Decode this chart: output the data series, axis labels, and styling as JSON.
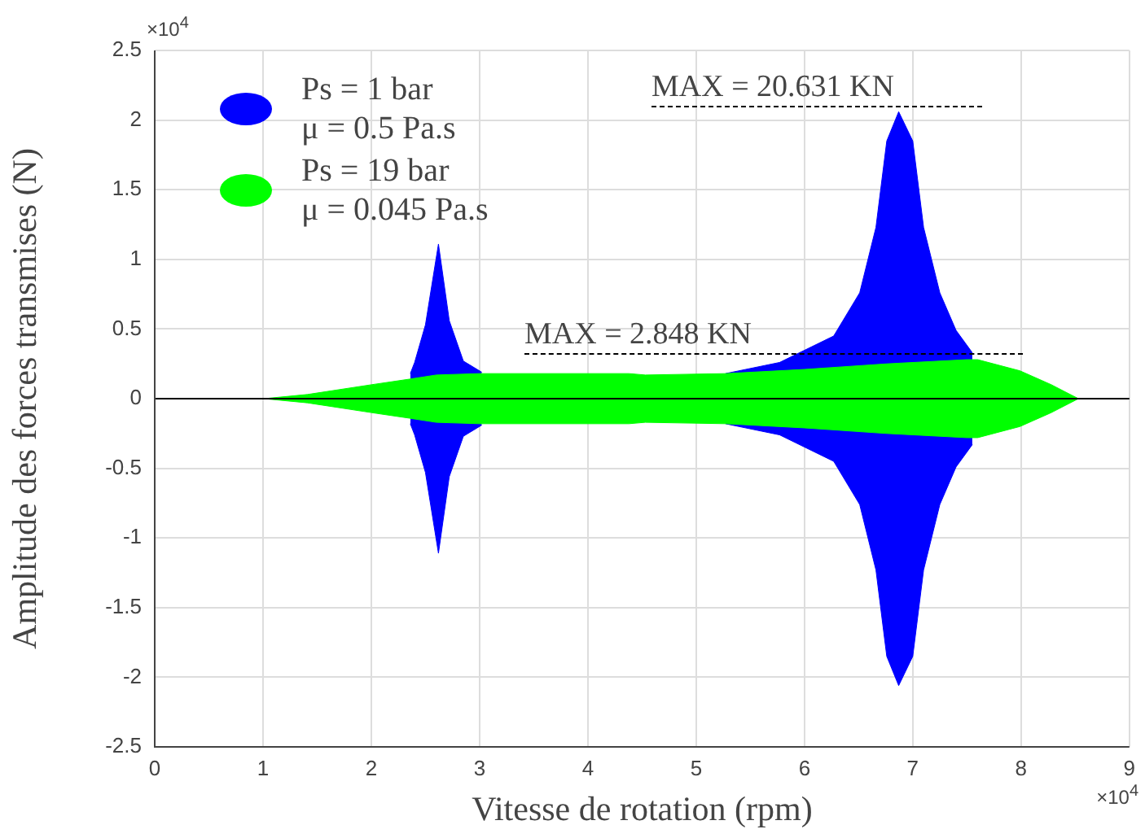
{
  "chart_data": {
    "type": "area",
    "xlabel": "Vitesse de rotation (rpm)",
    "ylabel": "Amplitude des forces transmises (N)",
    "xlim": [
      0,
      9
    ],
    "xticks": [
      0,
      1,
      2,
      3,
      4,
      5,
      6,
      7,
      8,
      9
    ],
    "ylim": [
      -2.5,
      2.5
    ],
    "yticks": [
      -2.5,
      -2,
      -1.5,
      -1,
      -0.5,
      0,
      0.5,
      1,
      1.5,
      2,
      2.5
    ],
    "grid": true,
    "legend": "top left",
    "series": [
      {
        "name": "Ps = 1 bar\nμ = 0.5 Pa.s",
        "color": "#0000ff",
        "x": [
          2.36,
          2.4,
          2.5,
          2.62,
          2.72,
          2.85,
          3.02,
          4,
          5.27,
          5.77,
          6.27,
          6.51,
          6.66,
          6.76,
          6.87,
          7,
          7.1,
          7.25,
          7.4,
          7.55
        ],
        "values": [
          0.18,
          0.26,
          0.53,
          1.11,
          0.56,
          0.27,
          0.19,
          null,
          0.18,
          0.26,
          0.45,
          0.76,
          1.23,
          1.85,
          2.06,
          1.85,
          1.23,
          0.76,
          0.49,
          0.33
        ]
      },
      {
        "color": "#0000ff",
        "x": [
          2.36,
          2.4,
          2.5,
          2.62,
          2.72,
          2.85,
          3.02,
          4,
          5.27,
          5.77,
          6.27,
          6.51,
          6.66,
          6.76,
          6.87,
          7,
          7.1,
          7.25,
          7.4,
          7.55
        ],
        "values": [
          -0.18,
          -0.26,
          -0.53,
          -1.11,
          -0.56,
          -0.27,
          -0.19,
          null,
          -0.18,
          -0.26,
          -0.45,
          -0.76,
          -1.23,
          -1.85,
          -2.06,
          -1.85,
          -1.23,
          -0.76,
          -0.49,
          -0.33
        ]
      },
      {
        "name": "Ps = 19 bar\nμ = 0.045 Pa.s",
        "color": "#00ff00",
        "x": [
          1.01,
          1.41,
          2,
          2.35,
          2.6,
          3,
          4.38,
          4.53,
          5.27,
          6,
          6.76,
          7.5,
          7.6,
          7.99,
          8.28,
          8.53
        ],
        "values": [
          0,
          0.03,
          0.1,
          0.14,
          0.17,
          0.18,
          0.18,
          0.17,
          0.18,
          0.21,
          0.25,
          0.28,
          0.28,
          0.2,
          0.1,
          0
        ]
      },
      {
        "color": "#00ff00",
        "x": [
          1.01,
          1.41,
          2,
          2.35,
          2.6,
          3,
          4.38,
          4.53,
          5.27,
          6,
          6.76,
          7.5,
          7.6,
          7.99,
          8.28,
          8.53
        ],
        "values": [
          0,
          -0.03,
          -0.1,
          -0.14,
          -0.17,
          -0.18,
          -0.18,
          -0.17,
          -0.18,
          -0.21,
          -0.25,
          -0.28,
          -0.28,
          -0.2,
          -0.1,
          0
        ]
      }
    ],
    "ref_lines": [
      {
        "axis": "y",
        "value": 0,
        "color": "#000000"
      }
    ],
    "annotations": [
      "×10$^{4}$",
      "×10$^{4}$",
      "MAX = 20.631 KN",
      "MAX = 2.848 KN"
    ]
  }
}
